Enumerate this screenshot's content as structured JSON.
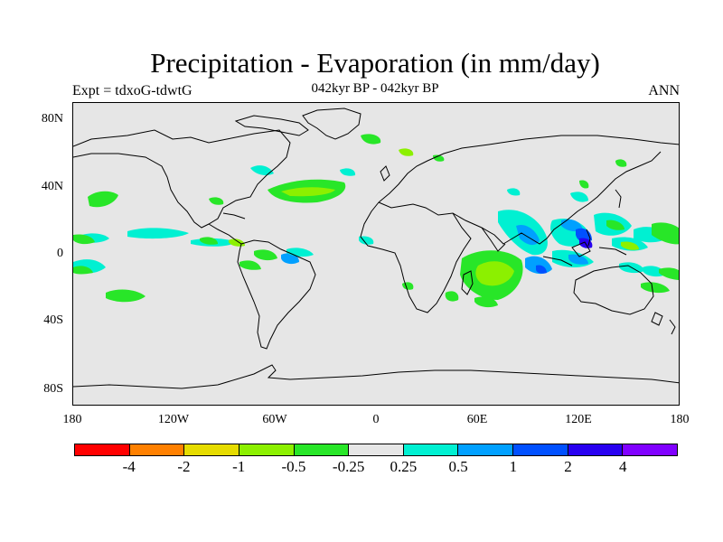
{
  "title": "Precipitation - Evaporation (in mm/day)",
  "subtitle": "042kyr BP - 042kyr BP",
  "left_label": "Expt = tdxoG-tdwtG",
  "right_label": "ANN",
  "y_ticks": [
    "80N",
    "40N",
    "0",
    "40S",
    "80S"
  ],
  "x_ticks": [
    "180",
    "120W",
    "60W",
    "0",
    "60E",
    "120E",
    "180"
  ],
  "colorbar": {
    "colors": [
      "#ff0000",
      "#ff8000",
      "#e6dc00",
      "#8cf000",
      "#28e628",
      "#e6e6e6",
      "#00f0d2",
      "#00a0ff",
      "#0050ff",
      "#2800f0",
      "#8000ff"
    ],
    "labels": [
      "-4",
      "-2",
      "-1",
      "-0.5",
      "-0.25",
      "0.25",
      "0.5",
      "1",
      "2",
      "4"
    ]
  },
  "icons": [
    "world-coastline-map"
  ]
}
